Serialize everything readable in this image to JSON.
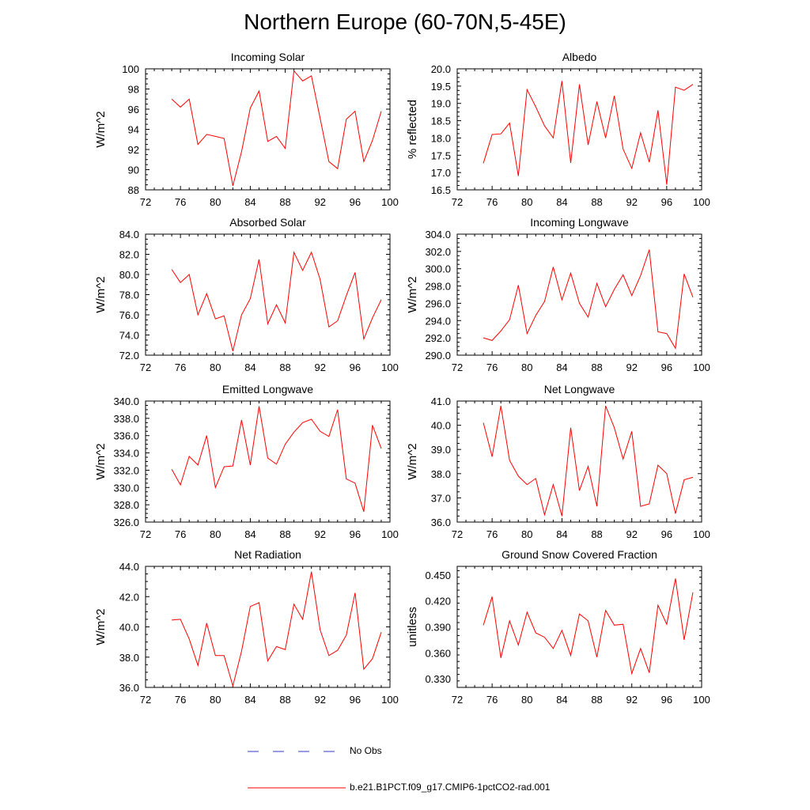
{
  "figure": {
    "title": "Northern Europe (60-70N,5-45E)"
  },
  "legend": {
    "items": [
      {
        "label": "No Obs",
        "color": "#3333cc",
        "style": "dashed"
      },
      {
        "label": "b.e21.B1PCT.f09_g17.CMIP6-1pctCO2-rad.001",
        "color": "#ff0000",
        "style": "solid"
      }
    ]
  },
  "chart_data": [
    {
      "type": "line",
      "title": "Incoming Solar",
      "xlabel": "",
      "ylabel": "W/m^2",
      "xlim": [
        72,
        100
      ],
      "ylim": [
        88,
        100
      ],
      "xticks": [
        "72",
        "76",
        "80",
        "84",
        "88",
        "92",
        "96",
        "100"
      ],
      "xtick_values": [
        72,
        76,
        80,
        84,
        88,
        92,
        96,
        100
      ],
      "yticks": [
        "88",
        "90",
        "92",
        "94",
        "96",
        "98",
        "100"
      ],
      "ytick_values": [
        88,
        90,
        92,
        94,
        96,
        98,
        100
      ],
      "series": [
        {
          "color": "#ff0000",
          "x": [
            75,
            76,
            77,
            78,
            79,
            80,
            81,
            82,
            83,
            84,
            85,
            86,
            87,
            88,
            89,
            90,
            91,
            92,
            93,
            94,
            95,
            96,
            97,
            98,
            99
          ],
          "values": [
            97.0,
            96.2,
            97.0,
            92.5,
            93.5,
            93.3,
            93.1,
            88.4,
            91.8,
            96.1,
            97.8,
            92.8,
            93.3,
            92.1,
            99.8,
            98.8,
            99.3,
            95.1,
            90.8,
            90.1,
            95.0,
            95.8,
            90.8,
            92.9,
            95.8
          ]
        }
      ]
    },
    {
      "type": "line",
      "title": "Albedo",
      "xlabel": "",
      "ylabel": "% reflected",
      "xlim": [
        72,
        100
      ],
      "ylim": [
        16.5,
        20.0
      ],
      "xticks": [
        "72",
        "76",
        "80",
        "84",
        "88",
        "92",
        "96",
        "100"
      ],
      "xtick_values": [
        72,
        76,
        80,
        84,
        88,
        92,
        96,
        100
      ],
      "yticks": [
        "16.5",
        "17.0",
        "17.5",
        "18.0",
        "18.5",
        "19.0",
        "19.5",
        "20.0"
      ],
      "ytick_values": [
        16.5,
        17.0,
        17.5,
        18.0,
        18.5,
        19.0,
        19.5,
        20.0
      ],
      "series": [
        {
          "color": "#ff0000",
          "x": [
            75,
            76,
            77,
            78,
            79,
            80,
            81,
            82,
            83,
            84,
            85,
            86,
            87,
            88,
            89,
            90,
            91,
            92,
            93,
            94,
            95,
            96,
            97,
            98,
            99
          ],
          "values": [
            17.27,
            18.1,
            18.12,
            18.43,
            16.9,
            19.4,
            18.9,
            18.35,
            18.0,
            19.65,
            17.28,
            19.55,
            17.8,
            19.05,
            18.0,
            19.22,
            17.68,
            17.12,
            18.15,
            17.3,
            18.8,
            16.65,
            19.47,
            19.38,
            19.55
          ]
        }
      ]
    },
    {
      "type": "line",
      "title": "Absorbed Solar",
      "xlabel": "",
      "ylabel": "W/m^2",
      "xlim": [
        72,
        100
      ],
      "ylim": [
        72.0,
        84.0
      ],
      "xticks": [
        "72",
        "76",
        "80",
        "84",
        "88",
        "92",
        "96",
        "100"
      ],
      "xtick_values": [
        72,
        76,
        80,
        84,
        88,
        92,
        96,
        100
      ],
      "yticks": [
        "72.0",
        "74.0",
        "76.0",
        "78.0",
        "80.0",
        "82.0",
        "84.0"
      ],
      "ytick_values": [
        72,
        74,
        76,
        78,
        80,
        82,
        84
      ],
      "series": [
        {
          "color": "#ff0000",
          "x": [
            75,
            76,
            77,
            78,
            79,
            80,
            81,
            82,
            83,
            84,
            85,
            86,
            87,
            88,
            89,
            90,
            91,
            92,
            93,
            94,
            95,
            96,
            97,
            98,
            99
          ],
          "values": [
            80.5,
            79.2,
            80.0,
            76.0,
            78.1,
            75.6,
            75.9,
            72.4,
            76.0,
            77.6,
            81.5,
            75.1,
            77.0,
            75.2,
            82.2,
            80.4,
            82.2,
            79.5,
            74.8,
            75.4,
            77.9,
            80.2,
            73.6,
            75.7,
            77.5
          ]
        }
      ]
    },
    {
      "type": "line",
      "title": "Incoming Longwave",
      "xlabel": "",
      "ylabel": "W/m^2",
      "xlim": [
        72,
        100
      ],
      "ylim": [
        290.0,
        304.0
      ],
      "xticks": [
        "72",
        "76",
        "80",
        "84",
        "88",
        "92",
        "96",
        "100"
      ],
      "xtick_values": [
        72,
        76,
        80,
        84,
        88,
        92,
        96,
        100
      ],
      "yticks": [
        "290.0",
        "292.0",
        "294.0",
        "296.0",
        "298.0",
        "300.0",
        "302.0",
        "304.0"
      ],
      "ytick_values": [
        290,
        292,
        294,
        296,
        298,
        300,
        302,
        304
      ],
      "series": [
        {
          "color": "#ff0000",
          "x": [
            75,
            76,
            77,
            78,
            79,
            80,
            81,
            82,
            83,
            84,
            85,
            86,
            87,
            88,
            89,
            90,
            91,
            92,
            93,
            94,
            95,
            96,
            97,
            98,
            99
          ],
          "values": [
            292.0,
            291.7,
            292.8,
            294.1,
            298.1,
            292.5,
            294.6,
            296.2,
            300.2,
            296.4,
            299.5,
            296.0,
            294.4,
            298.3,
            295.6,
            297.6,
            299.3,
            296.9,
            299.2,
            302.2,
            292.7,
            292.5,
            290.8,
            299.4,
            296.7
          ]
        }
      ]
    },
    {
      "type": "line",
      "title": "Emitted Longwave",
      "xlabel": "",
      "ylabel": "W/m^2",
      "xlim": [
        72,
        100
      ],
      "ylim": [
        326.0,
        340.0
      ],
      "xticks": [
        "72",
        "76",
        "80",
        "84",
        "88",
        "92",
        "96",
        "100"
      ],
      "xtick_values": [
        72,
        76,
        80,
        84,
        88,
        92,
        96,
        100
      ],
      "yticks": [
        "326.0",
        "328.0",
        "330.0",
        "332.0",
        "334.0",
        "336.0",
        "338.0",
        "340.0"
      ],
      "ytick_values": [
        326,
        328,
        330,
        332,
        334,
        336,
        338,
        340
      ],
      "series": [
        {
          "color": "#ff0000",
          "x": [
            75,
            76,
            77,
            78,
            79,
            80,
            81,
            82,
            83,
            84,
            85,
            86,
            87,
            88,
            89,
            90,
            91,
            92,
            93,
            94,
            95,
            96,
            97,
            98,
            99
          ],
          "values": [
            332.1,
            330.3,
            333.6,
            332.6,
            336.0,
            330.0,
            332.4,
            332.5,
            337.8,
            332.6,
            339.4,
            333.4,
            332.7,
            335.0,
            336.4,
            337.5,
            337.9,
            336.5,
            335.9,
            339.0,
            331.0,
            330.5,
            327.2,
            337.2,
            334.5
          ]
        }
      ]
    },
    {
      "type": "line",
      "title": "Net Longwave",
      "xlabel": "",
      "ylabel": "W/m^2",
      "xlim": [
        72,
        100
      ],
      "ylim": [
        36.0,
        41.0
      ],
      "xticks": [
        "72",
        "76",
        "80",
        "84",
        "88",
        "92",
        "96",
        "100"
      ],
      "xtick_values": [
        72,
        76,
        80,
        84,
        88,
        92,
        96,
        100
      ],
      "yticks": [
        "36.0",
        "37.0",
        "38.0",
        "39.0",
        "40.0",
        "41.0"
      ],
      "ytick_values": [
        36,
        37,
        38,
        39,
        40,
        41
      ],
      "series": [
        {
          "color": "#ff0000",
          "x": [
            75,
            76,
            77,
            78,
            79,
            80,
            81,
            82,
            83,
            84,
            85,
            86,
            87,
            88,
            89,
            90,
            91,
            92,
            93,
            94,
            95,
            96,
            97,
            98,
            99
          ],
          "values": [
            40.1,
            38.7,
            40.8,
            38.55,
            37.9,
            37.55,
            37.8,
            36.3,
            37.55,
            36.25,
            39.9,
            37.3,
            38.3,
            36.65,
            40.8,
            39.9,
            38.6,
            39.75,
            36.65,
            36.75,
            38.35,
            38.0,
            36.35,
            37.75,
            37.85
          ]
        }
      ]
    },
    {
      "type": "line",
      "title": "Net Radiation",
      "xlabel": "",
      "ylabel": "W/m^2",
      "xlim": [
        72,
        100
      ],
      "ylim": [
        36.0,
        44.0
      ],
      "xticks": [
        "72",
        "76",
        "80",
        "84",
        "88",
        "92",
        "96",
        "100"
      ],
      "xtick_values": [
        72,
        76,
        80,
        84,
        88,
        92,
        96,
        100
      ],
      "yticks": [
        "36.0",
        "38.0",
        "40.0",
        "42.0",
        "44.0"
      ],
      "ytick_values": [
        36,
        38,
        40,
        42,
        44
      ],
      "series": [
        {
          "color": "#ff0000",
          "x": [
            75,
            76,
            77,
            78,
            79,
            80,
            81,
            82,
            83,
            84,
            85,
            86,
            87,
            88,
            89,
            90,
            91,
            92,
            93,
            94,
            95,
            96,
            97,
            98,
            99
          ],
          "values": [
            40.45,
            40.5,
            39.2,
            37.45,
            40.25,
            38.1,
            38.1,
            36.1,
            38.4,
            41.35,
            41.6,
            37.75,
            38.7,
            38.5,
            41.5,
            40.5,
            43.65,
            39.8,
            38.1,
            38.45,
            39.45,
            42.25,
            37.2,
            37.9,
            39.65
          ]
        }
      ]
    },
    {
      "type": "line",
      "title": "Ground Snow Covered Fraction",
      "xlabel": "",
      "ylabel": "unitless",
      "xlim": [
        72,
        100
      ],
      "ylim": [
        0.32,
        0.46
      ],
      "xticks": [
        "72",
        "76",
        "80",
        "84",
        "88",
        "92",
        "96",
        "100"
      ],
      "xtick_values": [
        72,
        76,
        80,
        84,
        88,
        92,
        96,
        100
      ],
      "yticks": [
        "0.330",
        "0.360",
        "0.390",
        "0.420",
        "0.450"
      ],
      "ytick_values": [
        0.33,
        0.36,
        0.39,
        0.42,
        0.45
      ],
      "series": [
        {
          "color": "#ff0000",
          "x": [
            75,
            76,
            77,
            78,
            79,
            80,
            81,
            82,
            83,
            84,
            85,
            86,
            87,
            88,
            89,
            90,
            91,
            92,
            93,
            94,
            95,
            96,
            97,
            98,
            99
          ],
          "values": [
            0.392,
            0.425,
            0.354,
            0.397,
            0.369,
            0.407,
            0.383,
            0.378,
            0.365,
            0.386,
            0.357,
            0.405,
            0.397,
            0.355,
            0.409,
            0.392,
            0.393,
            0.336,
            0.365,
            0.337,
            0.415,
            0.393,
            0.446,
            0.375,
            0.43
          ]
        }
      ]
    }
  ]
}
